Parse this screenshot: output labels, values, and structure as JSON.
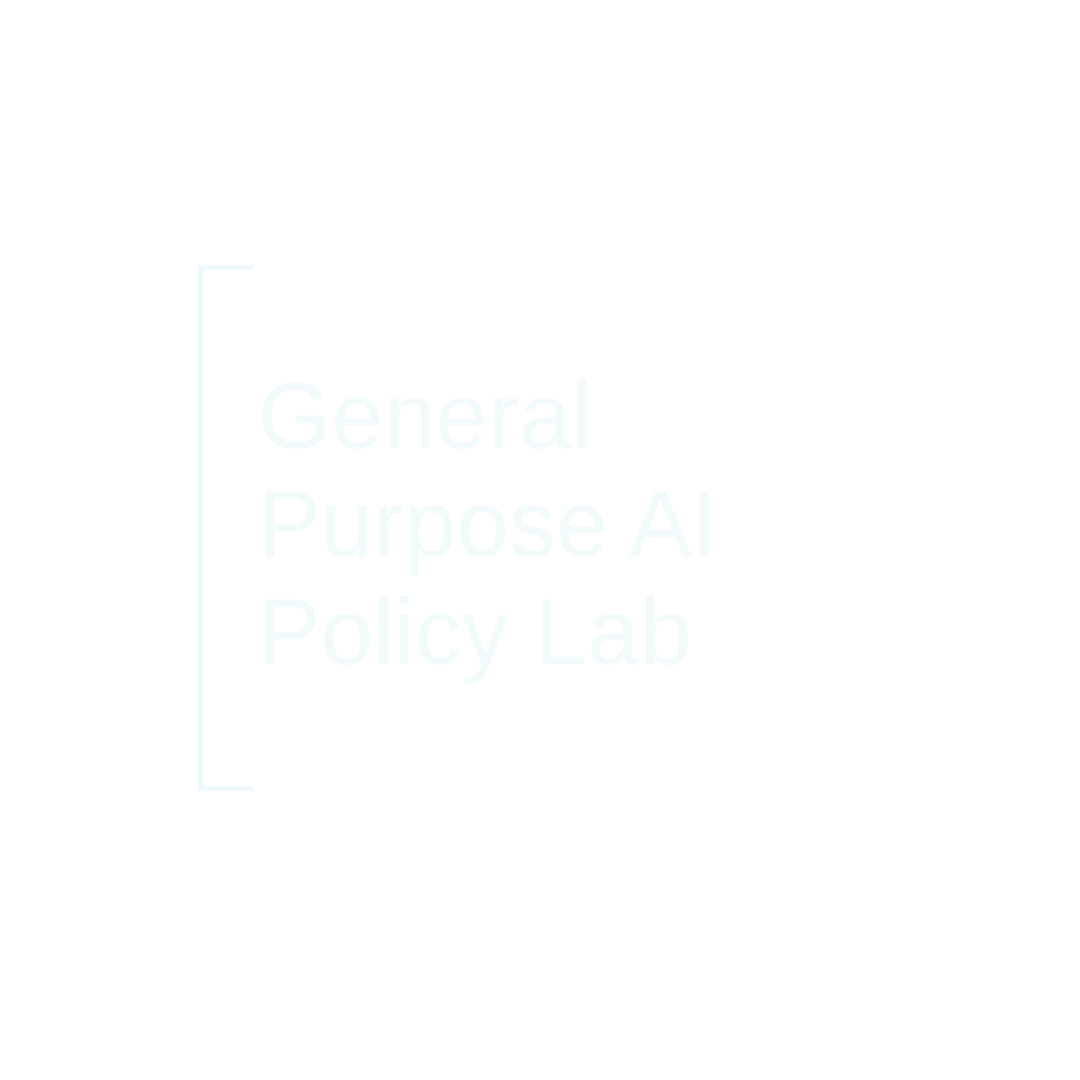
{
  "logo": {
    "lines": [
      "General",
      "Purpose AI",
      "Policy Lab"
    ],
    "colors": {
      "background": "#ffffff",
      "text": "#f2fbfc",
      "bracket": "#eef8fa"
    }
  }
}
